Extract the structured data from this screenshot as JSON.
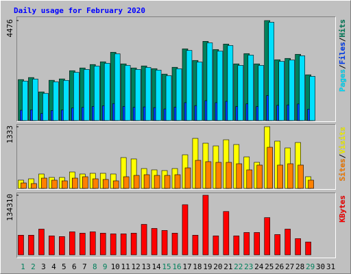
{
  "separator": "/",
  "chart_data": [
    {
      "type": "bar",
      "title": "Daily usage for February 2020",
      "ylim": [
        0,
        4476
      ],
      "yticks": [
        4476
      ],
      "series": [
        {
          "name": "Pages",
          "color": "#00e0ff",
          "values": [
            1768,
            1860,
            1220,
            1735,
            1800,
            2160,
            2290,
            2440,
            2565,
            2990,
            2470,
            2290,
            2380,
            2260,
            2010,
            2320,
            3140,
            2620,
            3480,
            3110,
            3360,
            2470,
            2930,
            2470,
            4400,
            2650,
            2710,
            2900,
            1980,
            null,
            null
          ]
        },
        {
          "name": "Files",
          "color": "#0040ff",
          "values": [
            460,
            480,
            320,
            450,
            470,
            560,
            590,
            630,
            660,
            760,
            630,
            590,
            610,
            580,
            520,
            600,
            800,
            670,
            890,
            800,
            860,
            630,
            750,
            630,
            1120,
            680,
            700,
            740,
            510,
            null,
            null
          ]
        },
        {
          "name": "Hits",
          "color": "#00805c",
          "values": [
            1835,
            1927,
            1284,
            1804,
            1865,
            2232,
            2355,
            2508,
            2630,
            3058,
            2538,
            2355,
            2446,
            2324,
            2080,
            2385,
            3211,
            2691,
            3547,
            3180,
            3425,
            2538,
            2997,
            2538,
            4476,
            2722,
            2783,
            2966,
            2049,
            null,
            null
          ]
        }
      ]
    },
    {
      "type": "bar",
      "ylim": [
        0,
        1333
      ],
      "yticks": [
        1333
      ],
      "series": [
        {
          "name": "Sites",
          "color": "#ff8000",
          "values": [
            118,
            104,
            222,
            178,
            163,
            222,
            252,
            207,
            193,
            163,
            252,
            281,
            296,
            281,
            281,
            296,
            444,
            607,
            578,
            563,
            563,
            533,
            400,
            504,
            889,
            504,
            533,
            504,
            178,
            null,
            null
          ]
        },
        {
          "name": "Visits",
          "color": "#ffff00",
          "values": [
            178,
            207,
            311,
            237,
            237,
            355,
            311,
            326,
            326,
            311,
            666,
            637,
            429,
            400,
            385,
            429,
            726,
            1081,
            977,
            918,
            1051,
            948,
            681,
            563,
            1333,
            1022,
            874,
            992,
            252,
            null,
            null
          ]
        }
      ]
    },
    {
      "type": "bar",
      "ylim": [
        0,
        134310
      ],
      "yticks": [
        134310
      ],
      "categories": [
        "1",
        "2",
        "3",
        "4",
        "5",
        "6",
        "7",
        "8",
        "9",
        "10",
        "11",
        "12",
        "13",
        "14",
        "15",
        "16",
        "17",
        "18",
        "19",
        "20",
        "21",
        "22",
        "23",
        "24",
        "25",
        "26",
        "27",
        "28",
        "29",
        "30",
        "31"
      ],
      "category_colors": [
        "#00805c",
        "#00805c",
        "#000000",
        "#000000",
        "#000000",
        "#000000",
        "#000000",
        "#00805c",
        "#00805c",
        "#000000",
        "#000000",
        "#000000",
        "#000000",
        "#000000",
        "#00805c",
        "#00805c",
        "#000000",
        "#000000",
        "#000000",
        "#000000",
        "#000000",
        "#00805c",
        "#00805c",
        "#000000",
        "#000000",
        "#000000",
        "#000000",
        "#000000",
        "#00805c",
        "#000000",
        "#000000"
      ],
      "series": [
        {
          "name": "KBytes",
          "color": "#ff0000",
          "values": [
            44254,
            44254,
            57988,
            42728,
            41202,
            51884,
            48832,
            51884,
            48832,
            47306,
            47306,
            48832,
            68670,
            59514,
            54936,
            48832,
            112924,
            44254,
            134310,
            42728,
            97664,
            42728,
            50358,
            50358,
            83930,
            45780,
            57988,
            36624,
            28994,
            null,
            null
          ]
        }
      ]
    }
  ]
}
